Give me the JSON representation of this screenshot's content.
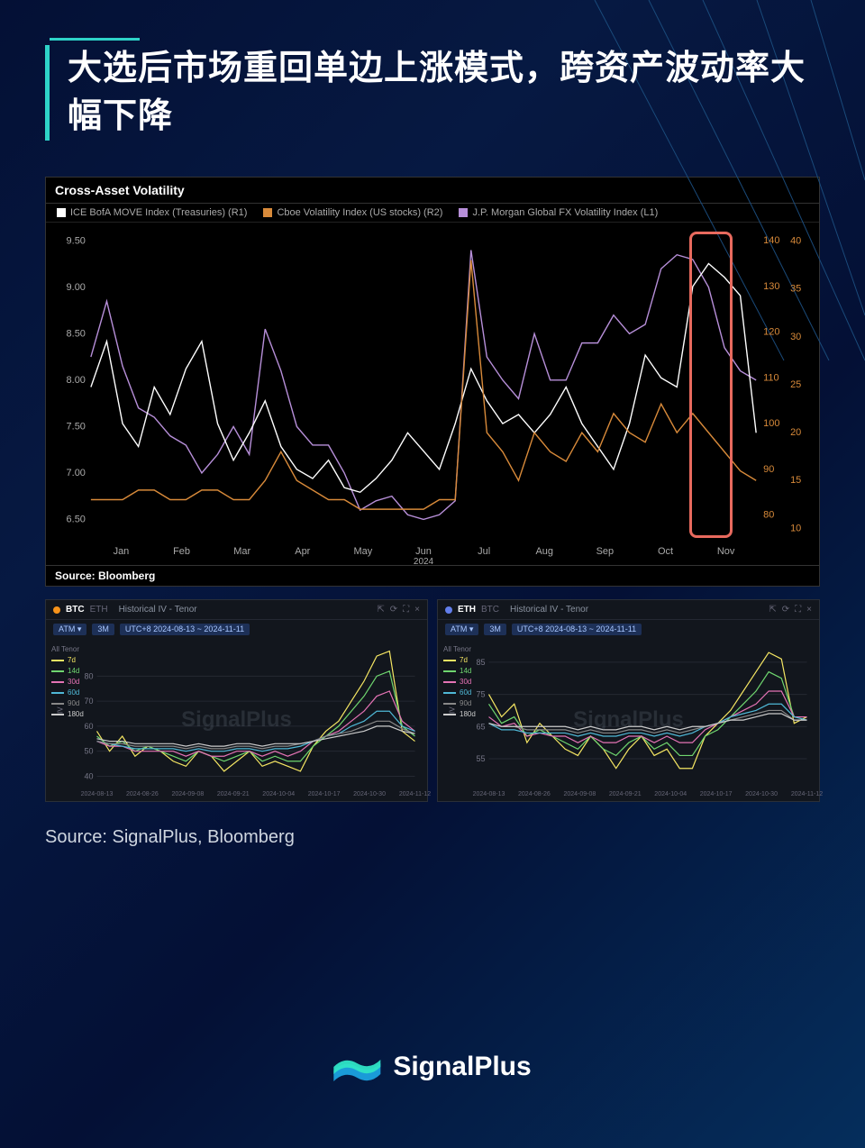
{
  "header": {
    "title": "大选后市场重回单边上涨模式，跨资产波动率大幅下降",
    "accent_color": "#2ed3c8"
  },
  "main_chart": {
    "type": "line",
    "title": "Cross-Asset Volatility",
    "source": "Source: Bloomberg",
    "background_color": "#000000",
    "grid_color": "#222222",
    "text_color": "#aaaaaa",
    "x_axis": {
      "labels": [
        "Jan",
        "Feb",
        "Mar",
        "Apr",
        "May",
        "Jun",
        "Jul",
        "Aug",
        "Sep",
        "Oct",
        "Nov"
      ],
      "sublabel": "2024"
    },
    "left_axis": {
      "label": "L1",
      "ticks": [
        6.5,
        7.0,
        7.5,
        8.0,
        8.5,
        9.0,
        9.5
      ],
      "ylim": [
        6.3,
        9.6
      ],
      "color": "#ffffff"
    },
    "right_axis_1": {
      "label": "R1",
      "ticks": [
        80,
        90,
        100,
        110,
        120,
        130,
        140
      ],
      "ylim": [
        75,
        142
      ],
      "color": "#d88a3a"
    },
    "right_axis_2": {
      "label": "R2",
      "ticks": [
        10,
        15,
        20,
        25,
        30,
        35,
        40
      ],
      "ylim": [
        9,
        41
      ],
      "color": "#d88a3a"
    },
    "legend": [
      {
        "label": "ICE BofA MOVE Index (Treasuries) (R1)",
        "color": "#ffffff"
      },
      {
        "label": "Cboe Volatility Index (US stocks) (R2)",
        "color": "#d88a3a"
      },
      {
        "label": "J.P. Morgan Global FX Volatility Index  (L1)",
        "color": "#b78fd9"
      }
    ],
    "highlight_box": {
      "x_start": 0.9,
      "x_end": 0.965,
      "color": "#e86a5e"
    },
    "series": {
      "move": {
        "color": "#ffffff",
        "axis": "R1",
        "values": [
          108,
          118,
          100,
          95,
          108,
          102,
          112,
          118,
          100,
          92,
          98,
          105,
          95,
          90,
          88,
          92,
          86,
          85,
          88,
          92,
          98,
          94,
          90,
          100,
          112,
          105,
          100,
          102,
          98,
          102,
          108,
          100,
          95,
          90,
          100,
          115,
          110,
          108,
          130,
          135,
          132,
          128,
          98
        ]
      },
      "vix": {
        "color": "#d88a3a",
        "axis": "R2",
        "values": [
          13,
          13,
          13,
          14,
          14,
          13,
          13,
          14,
          14,
          13,
          13,
          15,
          18,
          15,
          14,
          13,
          13,
          12,
          12,
          12,
          12,
          12,
          13,
          13,
          38,
          20,
          18,
          15,
          20,
          18,
          17,
          20,
          18,
          22,
          20,
          19,
          23,
          20,
          22,
          20,
          18,
          16,
          15
        ]
      },
      "fx": {
        "color": "#b78fd9",
        "axis": "L1",
        "values": [
          8.25,
          8.85,
          8.15,
          7.7,
          7.6,
          7.4,
          7.3,
          7.0,
          7.2,
          7.5,
          7.2,
          8.55,
          8.1,
          7.5,
          7.3,
          7.3,
          7.0,
          6.6,
          6.7,
          6.75,
          6.55,
          6.5,
          6.55,
          6.7,
          9.4,
          8.25,
          8.0,
          7.8,
          8.5,
          8.0,
          8.0,
          8.4,
          8.4,
          8.7,
          8.5,
          8.6,
          9.2,
          9.35,
          9.3,
          9.0,
          8.35,
          8.1,
          8.0
        ]
      }
    }
  },
  "small_charts": {
    "watermark": "SignalPlus",
    "title": "Historical IV - Tenor",
    "date_range": "UTC+8 2024-08-13 ~ 2024-11-11",
    "atm_label": "ATM",
    "period_label": "3M",
    "x_labels": [
      "2024-08-13",
      "2024-08-26",
      "2024-09-08",
      "2024-09-21",
      "2024-10-04",
      "2024-10-17",
      "2024-10-30",
      "2024-11-12"
    ],
    "tenors": [
      {
        "label": "7d",
        "color": "#f5e663"
      },
      {
        "label": "14d",
        "color": "#6fd66f"
      },
      {
        "label": "30d",
        "color": "#e573b5"
      },
      {
        "label": "60d",
        "color": "#4fb8d6"
      },
      {
        "label": "90d",
        "color": "#888888"
      },
      {
        "label": "180d",
        "color": "#cccccc"
      }
    ],
    "btc": {
      "symbol": "BTC",
      "alt_symbol": "ETH",
      "dot_color": "#f7931a",
      "y_ticks": [
        40,
        50,
        60,
        70,
        80
      ],
      "ylim": [
        38,
        92
      ],
      "series": {
        "7d": [
          58,
          50,
          56,
          48,
          52,
          50,
          46,
          44,
          50,
          48,
          42,
          46,
          50,
          44,
          46,
          44,
          42,
          52,
          58,
          62,
          70,
          78,
          88,
          90,
          58,
          54
        ],
        "14d": [
          56,
          52,
          54,
          50,
          52,
          50,
          48,
          46,
          50,
          48,
          46,
          48,
          50,
          46,
          48,
          46,
          46,
          52,
          56,
          60,
          66,
          72,
          80,
          82,
          60,
          56
        ],
        "30d": [
          54,
          52,
          52,
          50,
          50,
          50,
          50,
          48,
          50,
          48,
          48,
          50,
          50,
          48,
          50,
          48,
          50,
          54,
          56,
          58,
          62,
          66,
          72,
          74,
          62,
          58
        ],
        "60d": [
          54,
          53,
          52,
          51,
          51,
          51,
          51,
          50,
          51,
          50,
          50,
          51,
          51,
          50,
          51,
          51,
          52,
          54,
          56,
          57,
          60,
          62,
          66,
          66,
          60,
          58
        ],
        "90d": [
          54,
          53,
          53,
          52,
          52,
          52,
          52,
          51,
          52,
          51,
          51,
          52,
          52,
          51,
          52,
          52,
          53,
          54,
          56,
          57,
          58,
          60,
          62,
          62,
          59,
          57
        ],
        "180d": [
          55,
          54,
          54,
          53,
          53,
          53,
          53,
          52,
          53,
          52,
          52,
          53,
          53,
          52,
          53,
          53,
          53,
          54,
          55,
          56,
          57,
          58,
          60,
          60,
          58,
          57
        ]
      }
    },
    "eth": {
      "symbol": "ETH",
      "alt_symbol": "BTC",
      "dot_color": "#627eea",
      "y_ticks": [
        55,
        65,
        75,
        85
      ],
      "ylim": [
        48,
        90
      ],
      "series": {
        "7d": [
          75,
          68,
          72,
          60,
          66,
          62,
          58,
          56,
          62,
          58,
          52,
          58,
          62,
          56,
          58,
          52,
          52,
          62,
          66,
          70,
          76,
          82,
          88,
          86,
          66,
          68
        ],
        "14d": [
          72,
          66,
          68,
          62,
          64,
          62,
          60,
          58,
          62,
          58,
          56,
          60,
          62,
          58,
          60,
          56,
          56,
          62,
          64,
          68,
          72,
          76,
          82,
          80,
          68,
          68
        ],
        "30d": [
          68,
          65,
          66,
          62,
          63,
          62,
          62,
          60,
          62,
          60,
          60,
          62,
          62,
          60,
          62,
          60,
          60,
          64,
          66,
          68,
          70,
          72,
          76,
          76,
          68,
          68
        ],
        "60d": [
          66,
          64,
          64,
          63,
          63,
          63,
          63,
          62,
          63,
          62,
          62,
          63,
          63,
          62,
          63,
          62,
          63,
          65,
          66,
          68,
          69,
          70,
          72,
          72,
          68,
          67
        ],
        "90d": [
          66,
          65,
          65,
          64,
          64,
          64,
          64,
          63,
          64,
          63,
          63,
          64,
          64,
          63,
          64,
          63,
          64,
          65,
          66,
          67,
          68,
          69,
          70,
          70,
          67,
          67
        ],
        "180d": [
          66,
          65,
          65,
          65,
          65,
          65,
          65,
          64,
          65,
          64,
          64,
          65,
          65,
          64,
          65,
          64,
          65,
          65,
          66,
          67,
          67,
          68,
          69,
          69,
          67,
          67
        ]
      }
    }
  },
  "source_text": "Source: SignalPlus, Bloomberg",
  "footer": {
    "brand": "SignalPlus",
    "logo_colors": [
      "#1a9bd8",
      "#2fe4c6"
    ]
  }
}
